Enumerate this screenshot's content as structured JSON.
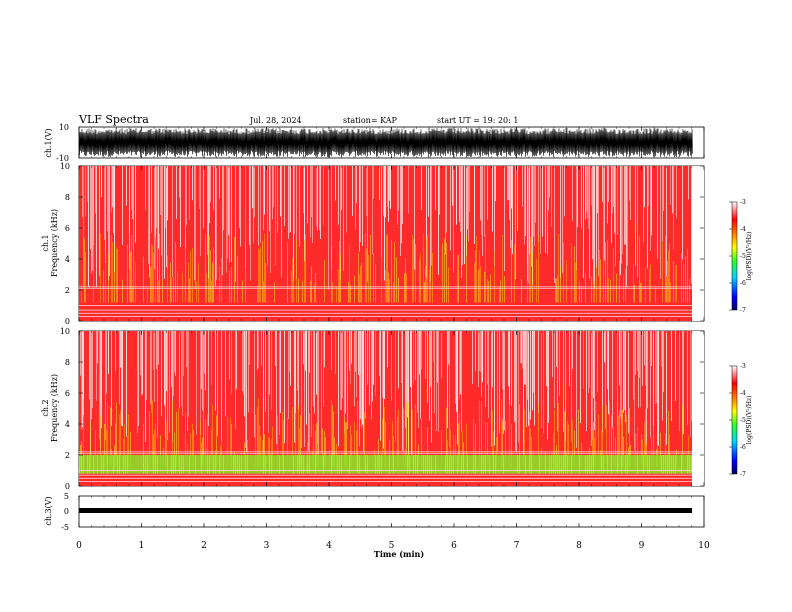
{
  "header": {
    "title": "VLF Spectra",
    "date": "Jul. 28, 2024",
    "station": "station= KAP",
    "start": "start  UT =   19: 20: 1"
  },
  "colors": {
    "spectrogram_bg": "#ff2a2a",
    "ch2_low_band": "#88e62a",
    "colorbar": [
      "#000066",
      "#0000ff",
      "#00d2ff",
      "#2aff2a",
      "#ffff00",
      "#ff8000",
      "#ff0000",
      "#ffffff"
    ]
  },
  "chart_data": [
    {
      "type": "line",
      "ylabel": "ch.1(V)",
      "ylim": [
        -10,
        10
      ],
      "yticks": [
        "10",
        "-10"
      ],
      "xlim": [
        0,
        10
      ],
      "description_of_trace": "dense oscillating waveform filling most of range"
    },
    {
      "type": "heatmap",
      "ylabel_channel": "ch.1",
      "ylabel": "Frequency  (kHz)",
      "ylim": [
        0,
        10
      ],
      "yticks": [
        "0",
        "2",
        "4",
        "6",
        "8",
        "10"
      ],
      "xlim": [
        0,
        10
      ],
      "colorbar": {
        "label": "log(PSD)(V²/Hz)",
        "ticks": [
          "-3",
          "-4",
          "-5",
          "-6",
          "-7"
        ],
        "range": [
          -7,
          -3
        ]
      }
    },
    {
      "type": "heatmap",
      "ylabel_channel": "ch.2",
      "ylabel": "Frequency  (kHz)",
      "ylim": [
        0,
        10
      ],
      "yticks": [
        "0",
        "2",
        "4",
        "6",
        "8",
        "10"
      ],
      "xlim": [
        0,
        10
      ],
      "colorbar": {
        "label": "log(PSD)(V²/Hz)",
        "ticks": [
          "-3",
          "-4",
          "-5",
          "-6",
          "-7"
        ],
        "range": [
          -7,
          -3
        ]
      }
    },
    {
      "type": "line",
      "ylabel": "ch.3(V)",
      "ylim": [
        -5,
        5
      ],
      "yticks": [
        "5",
        "0",
        "-5"
      ],
      "xlim": [
        0,
        10
      ],
      "xlabel": "Time  (min)",
      "xticks": [
        "0",
        "1",
        "2",
        "3",
        "4",
        "5",
        "6",
        "7",
        "8",
        "9",
        "10"
      ]
    }
  ]
}
